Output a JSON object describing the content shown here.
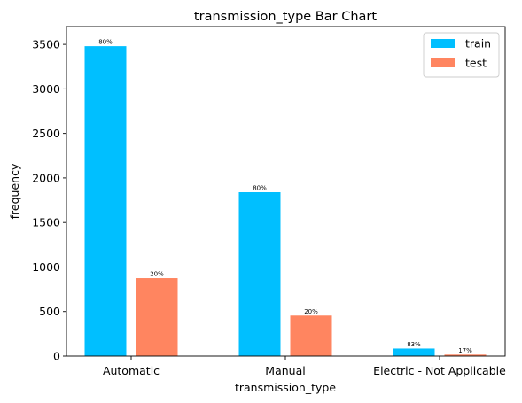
{
  "chart_data": {
    "type": "bar",
    "title": "transmission_type Bar Chart",
    "xlabel": "transmission_type",
    "ylabel": "frequency",
    "categories": [
      "Automatic",
      "Manual",
      "Electric - Not Applicable"
    ],
    "series": [
      {
        "name": "train",
        "color": "#00bfff",
        "values": [
          3480,
          1840,
          85
        ],
        "labels": [
          "80%",
          "80%",
          "83%"
        ]
      },
      {
        "name": "test",
        "color": "#ff8560",
        "values": [
          875,
          455,
          17
        ],
        "labels": [
          "20%",
          "20%",
          "17%"
        ]
      }
    ],
    "ylim": [
      0,
      3700
    ],
    "yticks": [
      0,
      500,
      1000,
      1500,
      2000,
      2500,
      3000,
      3500
    ],
    "ytick_labels": [
      "0",
      "500",
      "1000",
      "1500",
      "2000",
      "2500",
      "3000",
      "3500"
    ],
    "legend_position": "top-right",
    "grid": false
  }
}
